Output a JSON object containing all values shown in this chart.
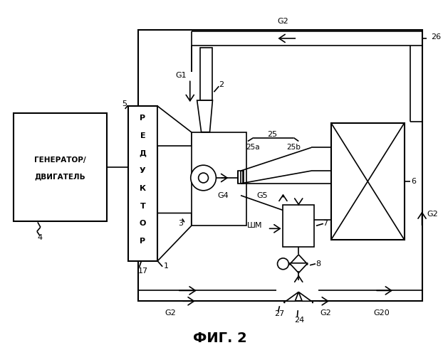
{
  "title": "ФИГ. 2",
  "bg": "#ffffff",
  "lc": "#000000",
  "lw": 1.2,
  "labels": {
    "generator": [
      "ГЕНЕРАТОР/",
      "ДВИГАТЕЛЬ"
    ],
    "reductor": "РЕДУКТОР",
    "shm": "ШМ"
  }
}
